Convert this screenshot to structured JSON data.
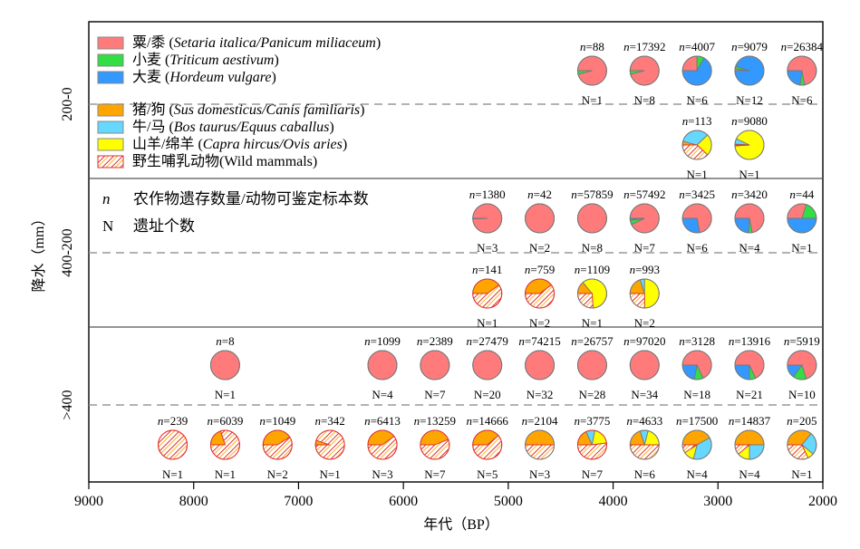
{
  "chart_data": {
    "type": "pie-matrix",
    "xlabel": "年代（BP）",
    "ylabel": "降水（mm）",
    "xlim": [
      9000,
      2000
    ],
    "x_reversed": true,
    "xticks": [
      "9000",
      "8000",
      "7000",
      "6000",
      "5000",
      "4000",
      "3000",
      "2000"
    ],
    "xtick_values": [
      9000,
      8000,
      7000,
      6000,
      5000,
      4000,
      3000,
      2000
    ],
    "yticks": [
      "200-0",
      "400-200",
      ">400"
    ],
    "colors": {
      "millet": "#ff7b7b",
      "wheat": "#33dd44",
      "barley": "#3399ff",
      "pig_dog": "#ffa500",
      "cattle_horse": "#66d8ff",
      "sheep_goat": "#ffff00",
      "wild": "#e03030"
    },
    "legend": [
      {
        "key": "millet",
        "cn": "粟/黍",
        "latin": "Setaria italica/Panicum miliaceum",
        "type": "fill"
      },
      {
        "key": "wheat",
        "cn": "小麦",
        "latin": "Triticum aestivum",
        "type": "fill"
      },
      {
        "key": "barley",
        "cn": "大麦",
        "latin": "Hordeum vulgare",
        "type": "fill"
      },
      {
        "key": "pig_dog",
        "cn": "猪/狗",
        "latin": "Sus domesticus/Canis familiaris",
        "type": "fill"
      },
      {
        "key": "cattle_horse",
        "cn": "牛/马",
        "latin": "Bos taurus/Equus caballus",
        "type": "fill"
      },
      {
        "key": "sheep_goat",
        "cn": "山羊/绵羊",
        "latin": "Capra hircus/Ovis aries",
        "type": "fill"
      },
      {
        "key": "wild",
        "cn": "野生哺乳动物",
        "latin": "Wild mammals",
        "type": "hatch"
      }
    ],
    "notes": [
      {
        "symbol": "n",
        "text": "农作物遗存数量/动物可鉴定标本数"
      },
      {
        "symbol": "N",
        "text": "遗址个数"
      }
    ],
    "rows": [
      {
        "zone": "200-0",
        "kind": "crops",
        "pies": [
          {
            "x": 4200,
            "n": "88",
            "N": "1",
            "slices": {
              "millet": 0.96,
              "wheat": 0.04,
              "barley": 0
            }
          },
          {
            "x": 3700,
            "n": "17392",
            "N": "8",
            "slices": {
              "millet": 0.96,
              "wheat": 0.04,
              "barley": 0
            }
          },
          {
            "x": 3200,
            "n": "4007",
            "N": "6",
            "slices": {
              "millet": 0.25,
              "wheat": 0.08,
              "barley": 0.67
            }
          },
          {
            "x": 2700,
            "n": "9079",
            "N": "12",
            "slices": {
              "millet": 0.02,
              "wheat": 0.03,
              "barley": 0.95
            }
          },
          {
            "x": 2200,
            "n": "26384",
            "N": "6",
            "slices": {
              "millet": 0.72,
              "wheat": 0.05,
              "barley": 0.23
            }
          }
        ]
      },
      {
        "zone": "200-0",
        "kind": "animals",
        "pies": [
          {
            "x": 3200,
            "n": "113",
            "N": "1",
            "slices": {
              "pig_dog": 0.04,
              "cattle_horse": 0.34,
              "sheep_goat": 0.24,
              "wild": 0.38
            }
          },
          {
            "x": 2700,
            "n": "9080",
            "N": "1",
            "slices": {
              "pig_dog": 0.01,
              "cattle_horse": 0.06,
              "sheep_goat": 0.92,
              "wild": 0.01
            }
          }
        ]
      },
      {
        "zone": "400-200",
        "kind": "crops",
        "pies": [
          {
            "x": 5200,
            "n": "1380",
            "N": "3",
            "slices": {
              "millet": 0.995,
              "wheat": 0,
              "barley": 0.005
            }
          },
          {
            "x": 4700,
            "n": "42",
            "N": "2",
            "slices": {
              "millet": 1,
              "wheat": 0,
              "barley": 0
            }
          },
          {
            "x": 4200,
            "n": "57859",
            "N": "8",
            "slices": {
              "millet": 1,
              "wheat": 0,
              "barley": 0
            }
          },
          {
            "x": 3700,
            "n": "57492",
            "N": "7",
            "slices": {
              "millet": 0.93,
              "wheat": 0.05,
              "barley": 0.02
            }
          },
          {
            "x": 3200,
            "n": "3425",
            "N": "6",
            "slices": {
              "millet": 0.72,
              "wheat": 0,
              "barley": 0.28
            }
          },
          {
            "x": 2700,
            "n": "3420",
            "N": "4",
            "slices": {
              "millet": 0.72,
              "wheat": 0.04,
              "barley": 0.24
            }
          },
          {
            "x": 2200,
            "n": "44",
            "N": "1",
            "slices": {
              "millet": 0.3,
              "wheat": 0.2,
              "barley": 0.5
            }
          }
        ]
      },
      {
        "zone": "400-200",
        "kind": "animals",
        "pies": [
          {
            "x": 5200,
            "n": "141",
            "N": "1",
            "slices": {
              "pig_dog": 0.4,
              "cattle_horse": 0,
              "sheep_goat": 0,
              "wild": 0.6
            }
          },
          {
            "x": 4700,
            "n": "759",
            "N": "2",
            "slices": {
              "pig_dog": 0.4,
              "cattle_horse": 0,
              "sheep_goat": 0,
              "wild": 0.6
            }
          },
          {
            "x": 4200,
            "n": "1109",
            "N": "1",
            "slices": {
              "pig_dog": 0.14,
              "cattle_horse": 0,
              "sheep_goat": 0.6,
              "wild": 0.26
            }
          },
          {
            "x": 3700,
            "n": "993",
            "N": "2",
            "slices": {
              "pig_dog": 0.2,
              "cattle_horse": 0.05,
              "sheep_goat": 0.5,
              "wild": 0.25
            }
          }
        ]
      },
      {
        "zone": ">400",
        "kind": "crops",
        "pies": [
          {
            "x": 7700,
            "n": "8",
            "N": "1",
            "slices": {
              "millet": 1,
              "wheat": 0,
              "barley": 0
            }
          },
          {
            "x": 6200,
            "n": "1099",
            "N": "4",
            "slices": {
              "millet": 1,
              "wheat": 0,
              "barley": 0
            }
          },
          {
            "x": 5700,
            "n": "2389",
            "N": "7",
            "slices": {
              "millet": 1,
              "wheat": 0,
              "barley": 0
            }
          },
          {
            "x": 5200,
            "n": "27479",
            "N": "20",
            "slices": {
              "millet": 1,
              "wheat": 0,
              "barley": 0
            }
          },
          {
            "x": 4700,
            "n": "74215",
            "N": "32",
            "slices": {
              "millet": 1,
              "wheat": 0,
              "barley": 0
            }
          },
          {
            "x": 4200,
            "n": "26757",
            "N": "28",
            "slices": {
              "millet": 1,
              "wheat": 0,
              "barley": 0
            }
          },
          {
            "x": 3700,
            "n": "97020",
            "N": "34",
            "slices": {
              "millet": 1,
              "wheat": 0,
              "barley": 0
            }
          },
          {
            "x": 3200,
            "n": "3128",
            "N": "18",
            "slices": {
              "millet": 0.68,
              "wheat": 0.1,
              "barley": 0.22
            }
          },
          {
            "x": 2700,
            "n": "13916",
            "N": "21",
            "slices": {
              "millet": 0.68,
              "wheat": 0.07,
              "barley": 0.25
            }
          },
          {
            "x": 2200,
            "n": "5919",
            "N": "10",
            "slices": {
              "millet": 0.7,
              "wheat": 0.15,
              "barley": 0.15
            }
          }
        ]
      },
      {
        "zone": ">400",
        "kind": "animals",
        "pies": [
          {
            "x": 8200,
            "n": "239",
            "N": "1",
            "slices": {
              "pig_dog": 0,
              "cattle_horse": 0,
              "sheep_goat": 0,
              "wild": 1
            }
          },
          {
            "x": 7700,
            "n": "6039",
            "N": "1",
            "slices": {
              "pig_dog": 0.2,
              "cattle_horse": 0,
              "sheep_goat": 0,
              "wild": 0.8
            }
          },
          {
            "x": 7200,
            "n": "1049",
            "N": "2",
            "slices": {
              "pig_dog": 0.41,
              "cattle_horse": 0,
              "sheep_goat": 0,
              "wild": 0.59
            }
          },
          {
            "x": 6700,
            "n": "342",
            "N": "1",
            "slices": {
              "pig_dog": 0.05,
              "cattle_horse": 0,
              "sheep_goat": 0,
              "wild": 0.95
            }
          },
          {
            "x": 6200,
            "n": "6413",
            "N": "3",
            "slices": {
              "pig_dog": 0.4,
              "cattle_horse": 0,
              "sheep_goat": 0,
              "wild": 0.6
            }
          },
          {
            "x": 5700,
            "n": "13259",
            "N": "7",
            "slices": {
              "pig_dog": 0.44,
              "cattle_horse": 0,
              "sheep_goat": 0,
              "wild": 0.56
            }
          },
          {
            "x": 5200,
            "n": "14666",
            "N": "5",
            "slices": {
              "pig_dog": 0.39,
              "cattle_horse": 0,
              "sheep_goat": 0,
              "wild": 0.61
            }
          },
          {
            "x": 4700,
            "n": "2104",
            "N": "3",
            "slices": {
              "pig_dog": 0.5,
              "cattle_horse": 0,
              "sheep_goat": 0,
              "wild": 0.5
            }
          },
          {
            "x": 4200,
            "n": "3775",
            "N": "7",
            "slices": {
              "pig_dog": 0.18,
              "cattle_horse": 0.1,
              "sheep_goat": 0.2,
              "wild": 0.52
            }
          },
          {
            "x": 3700,
            "n": "4633",
            "N": "6",
            "slices": {
              "pig_dog": 0.2,
              "cattle_horse": 0.09,
              "sheep_goat": 0.21,
              "wild": 0.5
            }
          },
          {
            "x": 3200,
            "n": "17500",
            "N": "4",
            "slices": {
              "pig_dog": 0.42,
              "cattle_horse": 0.37,
              "sheep_goat": 0.12,
              "wild": 0.09
            }
          },
          {
            "x": 2700,
            "n": "14837",
            "N": "4",
            "slices": {
              "pig_dog": 0.5,
              "cattle_horse": 0.25,
              "sheep_goat": 0.14,
              "wild": 0.11
            }
          },
          {
            "x": 2200,
            "n": "205",
            "N": "1",
            "slices": {
              "pig_dog": 0.36,
              "cattle_horse": 0.25,
              "sheep_goat": 0.07,
              "wild": 0.32
            }
          }
        ]
      }
    ]
  }
}
